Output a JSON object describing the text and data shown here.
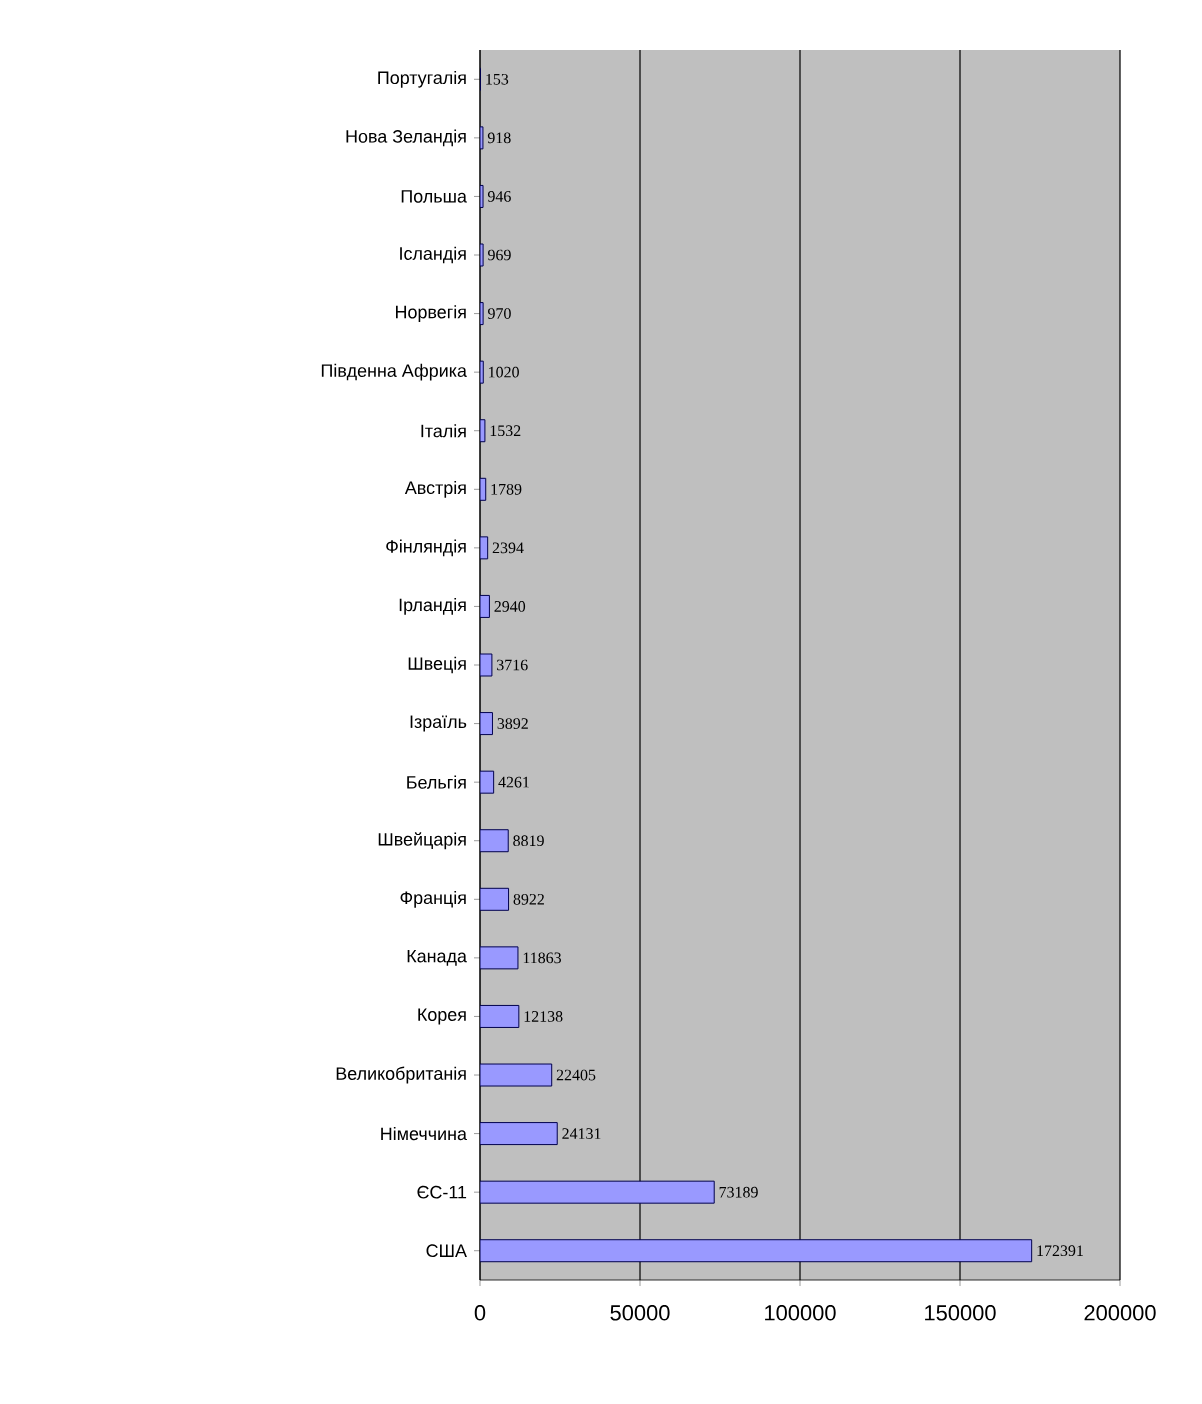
{
  "chart_data": {
    "type": "bar",
    "orientation": "horizontal",
    "categories": [
      "Португалія",
      "Нова Зеландія",
      "Польша",
      "Ісландія",
      "Норвегія",
      "Південна Африка",
      "Італія",
      "Австрія",
      "Фінляндія",
      "Ірландія",
      "Швеція",
      "Ізраїль",
      "Бельгія",
      "Швейцарія",
      "Франція",
      "Канада",
      "Корея",
      "Великобританія",
      "Німеччина",
      "ЄС-11",
      "США"
    ],
    "values": [
      153,
      918,
      946,
      969,
      970,
      1020,
      1532,
      1789,
      2394,
      2940,
      3716,
      3892,
      4261,
      8819,
      8922,
      11863,
      12138,
      22405,
      24131,
      73189,
      172391
    ],
    "color": "#9999ff",
    "data_labels": true,
    "grid": "x",
    "xlim": [
      0,
      200000
    ],
    "xticks": [
      0,
      50000,
      100000,
      150000,
      200000
    ]
  }
}
